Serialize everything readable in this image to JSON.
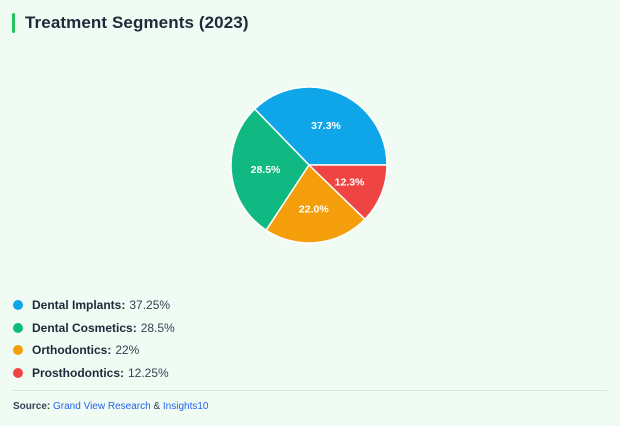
{
  "title": "Treatment Segments (2023)",
  "colors": {
    "accent": "#22c55e",
    "background": "#f0fbf3"
  },
  "chart_data": {
    "type": "pie",
    "title": "Treatment Segments (2023)",
    "slices": [
      {
        "name": "Dental Implants",
        "value": 37.25,
        "label": "37.3%",
        "color": "#0ea5e9"
      },
      {
        "name": "Dental Cosmetics",
        "value": 28.5,
        "label": "28.5%",
        "color": "#10b981"
      },
      {
        "name": "Orthodontics",
        "value": 22,
        "label": "22.0%",
        "color": "#f59e0b"
      },
      {
        "name": "Prosthodontics",
        "value": 12.25,
        "label": "12.3%",
        "color": "#ef4444"
      }
    ],
    "legend": {
      "position": "bottom-left",
      "items": [
        {
          "name": "Dental Implants:",
          "value": "37.25%",
          "color": "#0ea5e9"
        },
        {
          "name": "Dental Cosmetics:",
          "value": "28.5%",
          "color": "#10b981"
        },
        {
          "name": "Orthodontics:",
          "value": "22%",
          "color": "#f59e0b"
        },
        {
          "name": "Prosthodontics:",
          "value": "12.25%",
          "color": "#ef4444"
        }
      ]
    }
  },
  "source": {
    "label": "Source:",
    "link1": "Grand View Research",
    "amp": "&",
    "link2": "Insights10"
  }
}
